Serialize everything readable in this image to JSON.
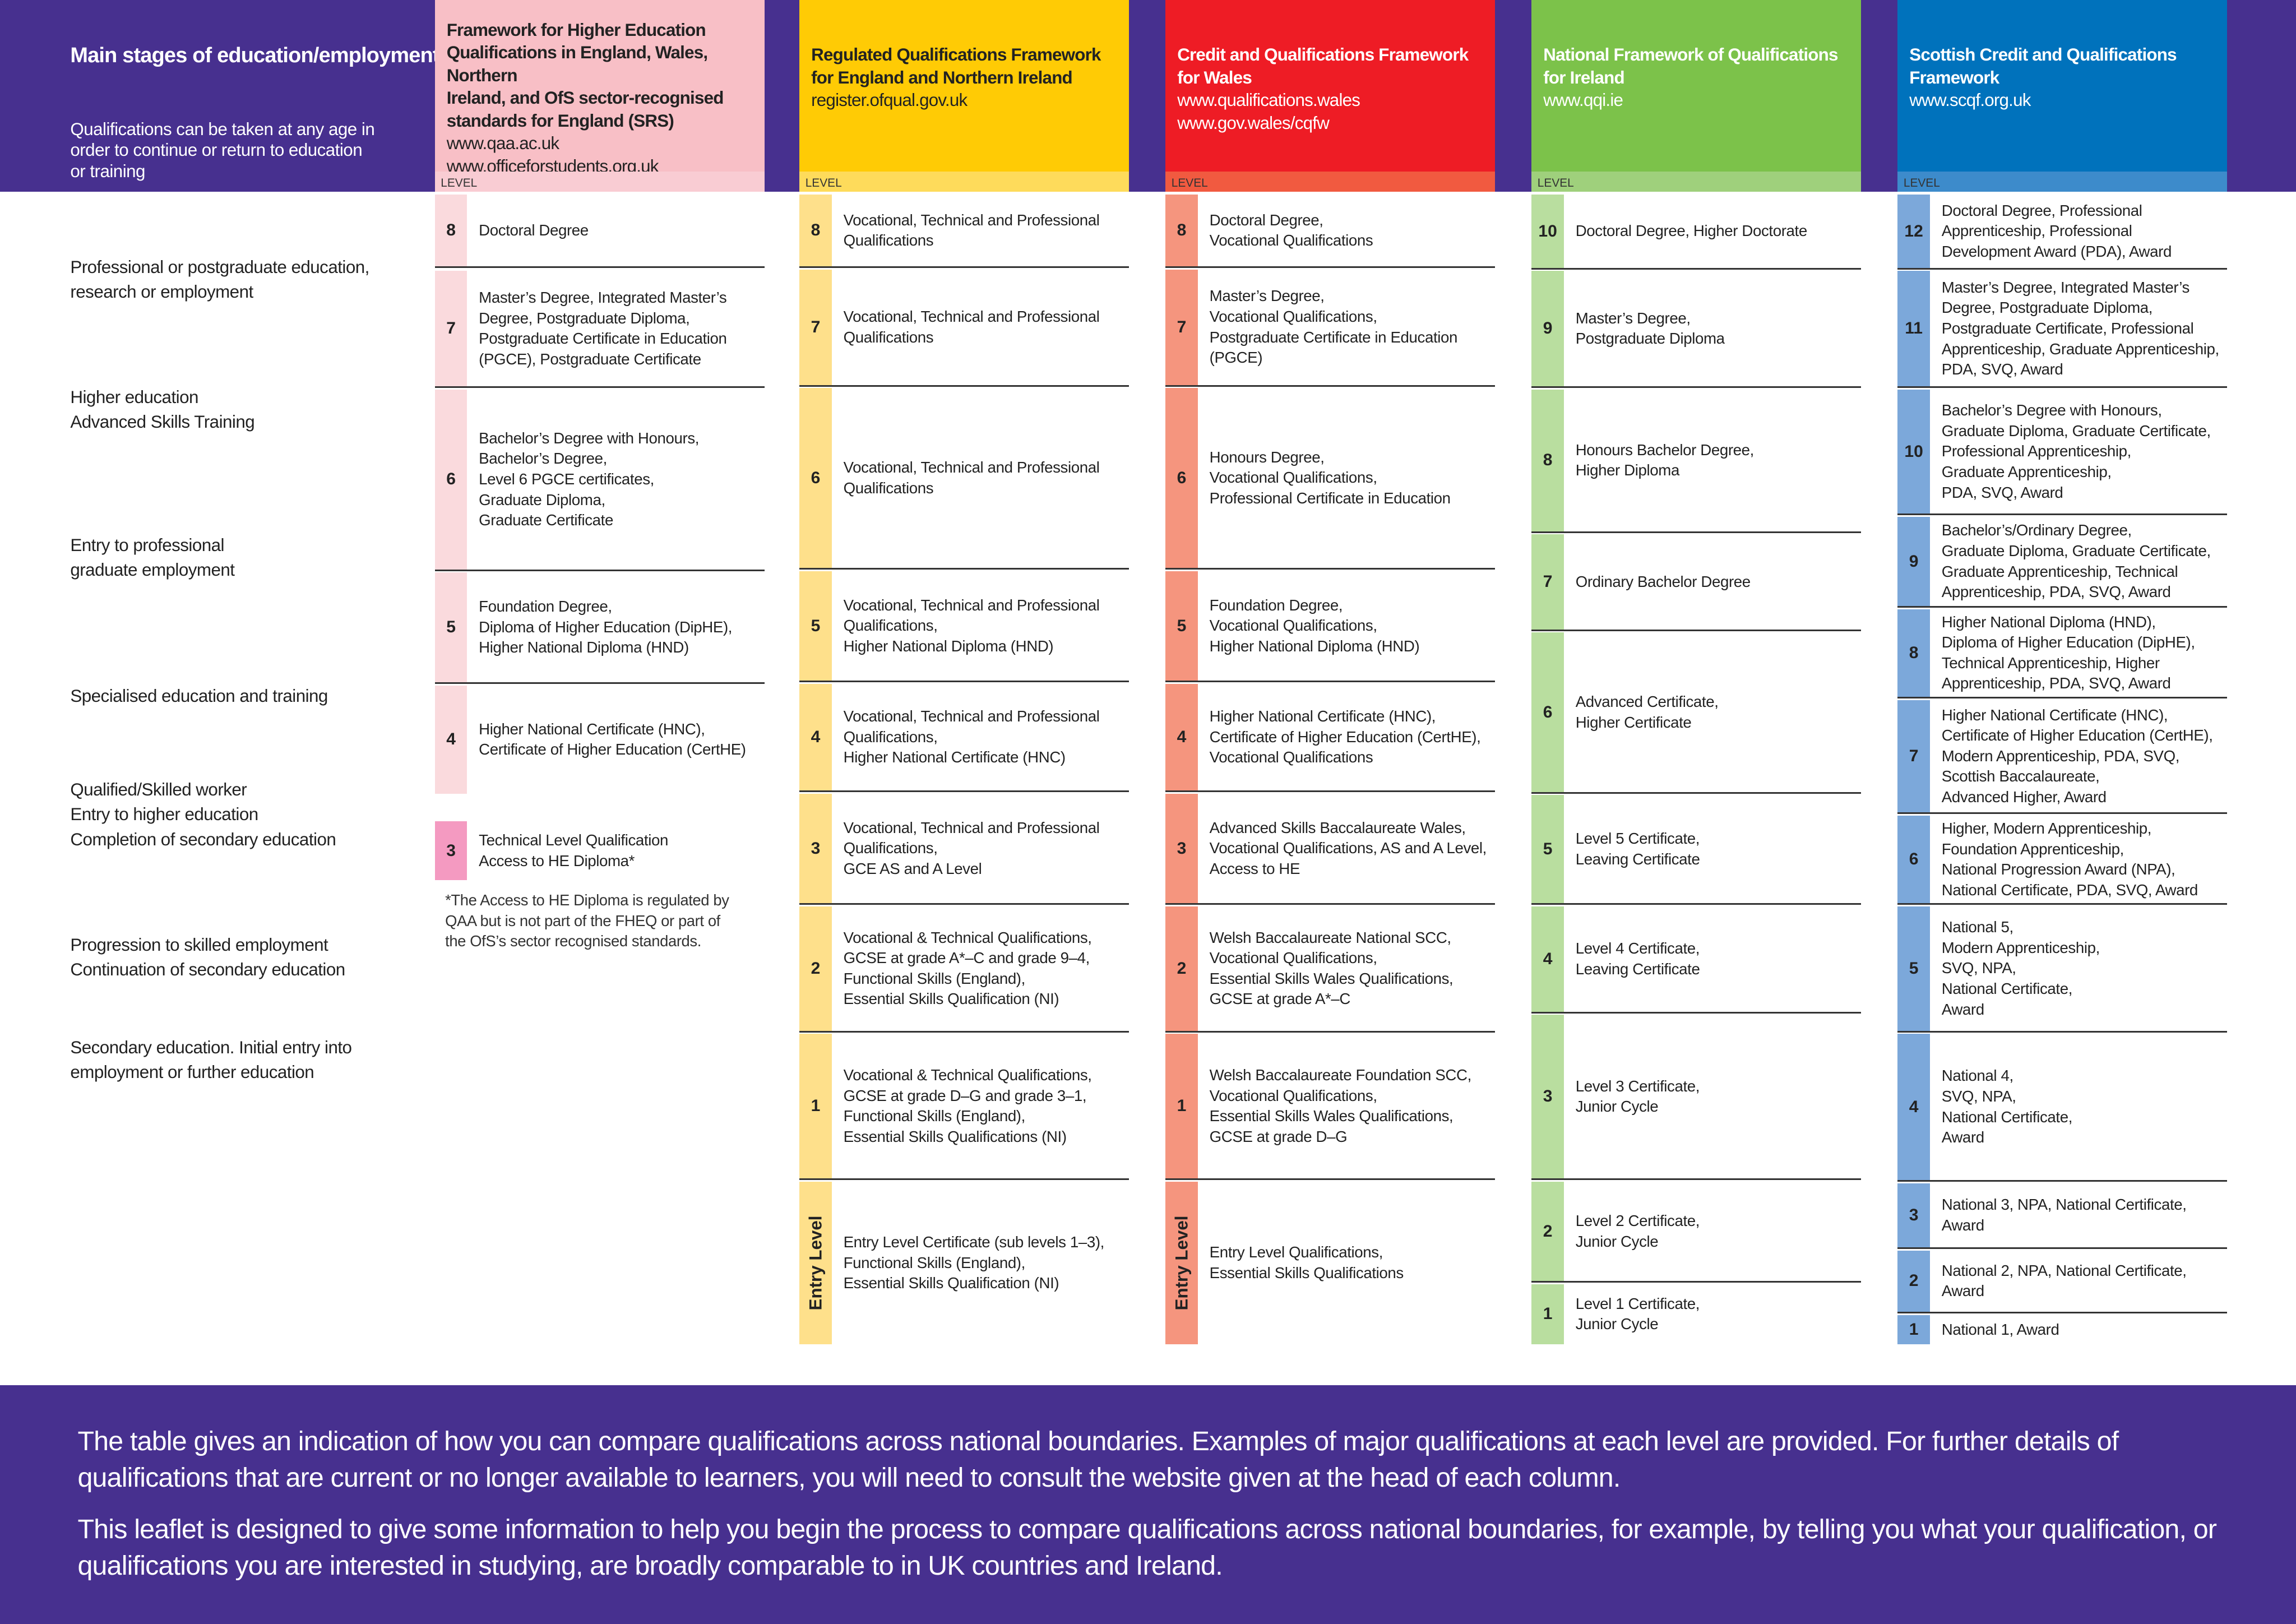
{
  "main": {
    "title": "Main stages of education/employment",
    "subtitle": "Qualifications can be taken at any age in\norder to continue or return to education\nor training",
    "level_label": "LEVEL",
    "stages": [
      "Professional or postgraduate education,\nresearch or employment",
      "Higher education\nAdvanced Skills Training",
      "Entry to professional\ngraduate employment",
      "Specialised education and training",
      "Qualified/Skilled worker\nEntry to higher education\nCompletion of secondary education",
      "Progression to skilled employment\nContinuation of secondary education",
      "Secondary education. Initial entry into\nemployment or further education"
    ]
  },
  "colors": {
    "background": "#47308f",
    "fheq": "#f8bfc6",
    "rqf": "#ffcb05",
    "cqfw": "#ee1c25",
    "nfq": "#7cc24a",
    "scqf": "#0072bc"
  },
  "columns": [
    {
      "id": "fheq",
      "title": "Framework for Higher Education\nQualifications in England, Wales, Northern\nIreland, and OfS sector-recognised\nstandards for England (SRS)",
      "urls": "www.qaa.ac.uk\nwww.officeforstudents.org.uk",
      "rows": [
        {
          "level": "8",
          "text": "Doctoral Degree"
        },
        {
          "level": "7",
          "text": "Master’s Degree, Integrated Master’s\nDegree, Postgraduate Diploma,\nPostgraduate Certificate in Education\n(PGCE), Postgraduate Certificate"
        },
        {
          "level": "6",
          "text": "Bachelor’s Degree with Honours,\nBachelor’s Degree,\nLevel 6 PGCE certificates,\nGraduate Diploma,\nGraduate Certificate"
        },
        {
          "level": "5",
          "text": "Foundation Degree,\nDiploma of Higher Education (DipHE),\nHigher National Diploma (HND)"
        },
        {
          "level": "4",
          "text": "Higher National Certificate (HNC),\nCertificate of Higher Education (CertHE)"
        },
        {
          "level": "3",
          "text": "Technical Level Qualification\nAccess to HE Diploma*"
        }
      ],
      "footnote": "*The Access to HE Diploma is regulated by\nQAA but is not part of the FHEQ or part of\nthe OfS’s sector recognised standards."
    },
    {
      "id": "rqf",
      "title": "Regulated Qualifications Framework\nfor England and Northern Ireland",
      "urls": "register.ofqual.gov.uk",
      "rows": [
        {
          "level": "8",
          "text": "Vocational, Technical and Professional\nQualifications"
        },
        {
          "level": "7",
          "text": "Vocational, Technical and Professional\nQualifications"
        },
        {
          "level": "6",
          "text": "Vocational, Technical and Professional\nQualifications"
        },
        {
          "level": "5",
          "text": "Vocational, Technical and Professional\nQualifications,\nHigher National Diploma (HND)"
        },
        {
          "level": "4",
          "text": "Vocational, Technical and Professional\nQualifications,\nHigher National Certificate (HNC)"
        },
        {
          "level": "3",
          "text": "Vocational, Technical and Professional\nQualifications,\nGCE AS and A Level"
        },
        {
          "level": "2",
          "text": "Vocational & Technical Qualifications,\nGCSE at grade A*–C and grade 9–4,\nFunctional Skills (England),\nEssential Skills Qualification (NI)"
        },
        {
          "level": "1",
          "text": "Vocational & Technical Qualifications,\nGCSE at grade D–G and grade 3–1,\nFunctional Skills (England),\nEssential Skills Qualifications (NI)"
        },
        {
          "level": "Entry Level",
          "text": "Entry Level Certificate (sub levels 1–3),\nFunctional Skills (England),\nEssential Skills Qualification (NI)"
        }
      ]
    },
    {
      "id": "cqfw",
      "title": "Credit and Qualifications Framework\nfor Wales",
      "urls": "www.qualifications.wales\nwww.gov.wales/cqfw",
      "rows": [
        {
          "level": "8",
          "text": "Doctoral Degree,\nVocational Qualifications"
        },
        {
          "level": "7",
          "text": "Master’s Degree,\nVocational Qualifications,\nPostgraduate Certificate in Education\n(PGCE)"
        },
        {
          "level": "6",
          "text": "Honours Degree,\nVocational Qualifications,\nProfessional Certificate in Education"
        },
        {
          "level": "5",
          "text": "Foundation Degree,\nVocational Qualifications,\nHigher National Diploma (HND)"
        },
        {
          "level": "4",
          "text": "Higher National Certificate (HNC),\nCertificate of Higher Education (CertHE),\nVocational Qualifications"
        },
        {
          "level": "3",
          "text": "Advanced Skills Baccalaureate Wales,\nVocational Qualifications, AS and A Level,\nAccess to HE"
        },
        {
          "level": "2",
          "text": "Welsh Baccalaureate National SCC,\nVocational Qualifications,\nEssential Skills Wales Qualifications,\nGCSE at grade A*–C"
        },
        {
          "level": "1",
          "text": "Welsh Baccalaureate Foundation SCC,\nVocational Qualifications,\nEssential Skills Wales Qualifications,\nGCSE at grade D–G"
        },
        {
          "level": "Entry Level",
          "text": "Entry Level Qualifications,\nEssential Skills Qualifications"
        }
      ]
    },
    {
      "id": "nfq",
      "title": "National Framework of Qualifications\nfor Ireland",
      "urls": "www.qqi.ie",
      "rows": [
        {
          "level": "10",
          "text": "Doctoral Degree, Higher Doctorate"
        },
        {
          "level": "9",
          "text": "Master’s Degree,\nPostgraduate Diploma"
        },
        {
          "level": "8",
          "text": "Honours Bachelor Degree,\nHigher Diploma"
        },
        {
          "level": "7",
          "text": "Ordinary Bachelor Degree"
        },
        {
          "level": "6",
          "text": "Advanced Certificate,\nHigher Certificate"
        },
        {
          "level": "5",
          "text": "Level 5 Certificate,\nLeaving Certificate"
        },
        {
          "level": "4",
          "text": "Level 4 Certificate,\nLeaving Certificate"
        },
        {
          "level": "3",
          "text": "Level 3 Certificate,\nJunior Cycle"
        },
        {
          "level": "2",
          "text": "Level 2 Certificate,\nJunior Cycle"
        },
        {
          "level": "1",
          "text": "Level 1 Certificate,\nJunior Cycle"
        }
      ]
    },
    {
      "id": "scqf",
      "title": "Scottish Credit and Qualifications\nFramework",
      "urls": "www.scqf.org.uk",
      "rows": [
        {
          "level": "12",
          "text": "Doctoral Degree, Professional\nApprenticeship, Professional\nDevelopment Award (PDA), Award"
        },
        {
          "level": "11",
          "text": "Master’s Degree, Integrated Master’s\nDegree, Postgraduate Diploma,\nPostgraduate Certificate, Professional\nApprenticeship, Graduate Apprenticeship,\nPDA, SVQ, Award"
        },
        {
          "level": "10",
          "text": "Bachelor’s Degree with Honours,\nGraduate Diploma, Graduate Certificate,\nProfessional Apprenticeship,\nGraduate Apprenticeship,\nPDA, SVQ, Award"
        },
        {
          "level": "9",
          "text": "Bachelor’s/Ordinary Degree,\nGraduate Diploma, Graduate Certificate,\nGraduate Apprenticeship, Technical\nApprenticeship, PDA, SVQ, Award"
        },
        {
          "level": "8",
          "text": "Higher National Diploma (HND),\nDiploma of Higher Education (DipHE),\nTechnical Apprenticeship, Higher\nApprenticeship, PDA, SVQ, Award"
        },
        {
          "level": "7",
          "text": "Higher National Certificate (HNC),\nCertificate of Higher Education (CertHE),\nModern Apprenticeship, PDA, SVQ,\nScottish Baccalaureate,\nAdvanced Higher, Award"
        },
        {
          "level": "6",
          "text": "Higher, Modern Apprenticeship,\nFoundation Apprenticeship,\nNational Progression Award (NPA),\nNational Certificate, PDA, SVQ, Award"
        },
        {
          "level": "5",
          "text": "National 5,\nModern Apprenticeship,\nSVQ, NPA,\nNational Certificate,\nAward"
        },
        {
          "level": "4",
          "text": "National 4,\nSVQ, NPA,\nNational Certificate,\nAward"
        },
        {
          "level": "3",
          "text": "National 3, NPA, National Certificate,\nAward"
        },
        {
          "level": "2",
          "text": "National 2, NPA, National Certificate,\nAward"
        },
        {
          "level": "1",
          "text": "National 1, Award"
        }
      ]
    }
  ],
  "footer": {
    "p1": "The table gives an indication of how you can compare qualifications across national boundaries. Examples of major qualifications at each level are provided. For further details of qualifications that are current or no longer available to learners, you will need to consult the website given at the head of each column.",
    "p2": "This leaflet is designed to give some information to help you begin the process to compare qualifications across national boundaries, for example, by telling you what your qualification, or qualifications you are interested in studying, are broadly comparable to in UK countries and Ireland."
  }
}
